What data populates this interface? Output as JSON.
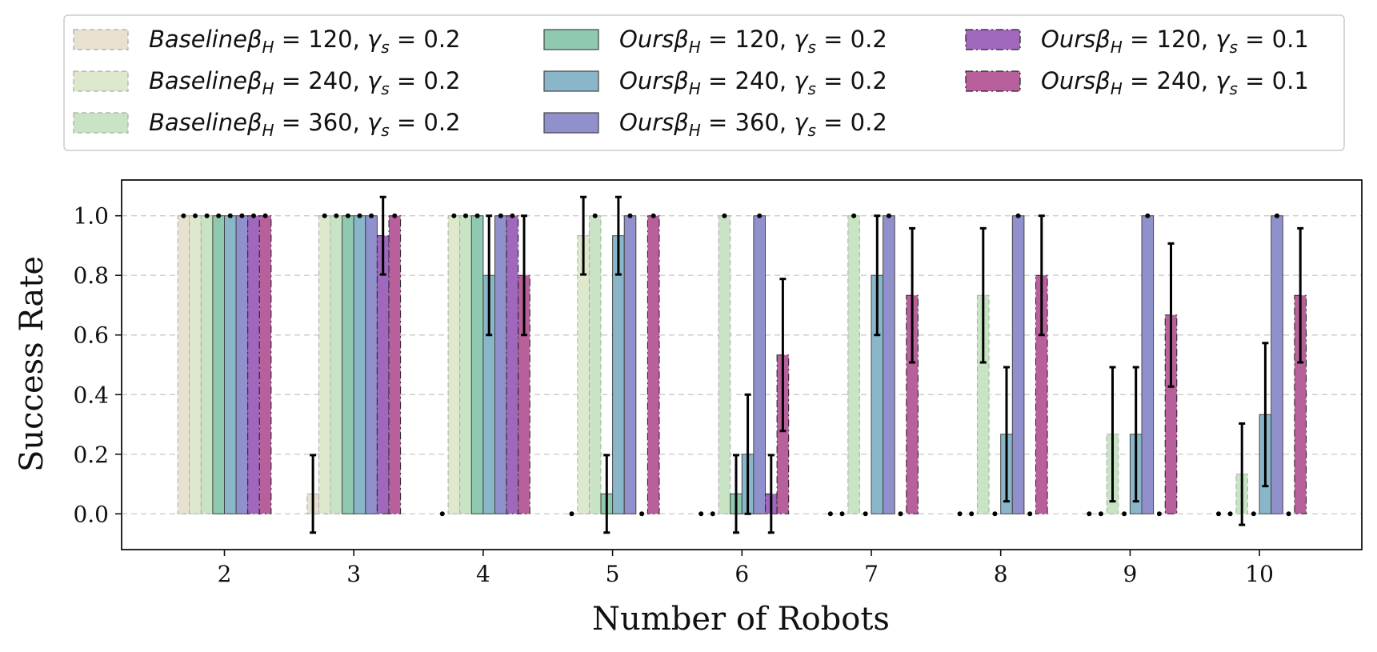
{
  "chart_data": {
    "type": "bar",
    "xlabel": "Number of Robots",
    "ylabel": "Success Rate",
    "ylim": [
      -0.12,
      1.12
    ],
    "yticks": [
      "0.0",
      "0.2",
      "0.4",
      "0.6",
      "0.8",
      "1.0"
    ],
    "grid": "y-dashed",
    "legend_position": "top",
    "categories": [
      "2",
      "3",
      "4",
      "5",
      "6",
      "7",
      "8",
      "9",
      "10"
    ],
    "series": [
      {
        "name": "Baselineβ_H = 120, γ_s = 0.2",
        "prefix": "Baseline",
        "beta": "120",
        "gamma": "0.2",
        "color": "#e8e0d0",
        "style": "dashed",
        "values": [
          1.0,
          0.067,
          0.0,
          0.0,
          0.0,
          0.0,
          0.0,
          0.0,
          0.0
        ],
        "errors": [
          0,
          0.13,
          0,
          0,
          0,
          0,
          0,
          0,
          0
        ]
      },
      {
        "name": "Baselineβ_H = 240, γ_s = 0.2",
        "prefix": "Baseline",
        "beta": "240",
        "gamma": "0.2",
        "color": "#dde8cc",
        "style": "dashed",
        "values": [
          1.0,
          1.0,
          1.0,
          0.933,
          0.0,
          0.0,
          0.0,
          0.0,
          0.0
        ],
        "errors": [
          0,
          0,
          0,
          0.13,
          0,
          0,
          0,
          0,
          0
        ]
      },
      {
        "name": "Baselineβ_H = 360, γ_s = 0.2",
        "prefix": "Baseline",
        "beta": "360",
        "gamma": "0.2",
        "color": "#c9e4c4",
        "style": "dashed",
        "values": [
          1.0,
          1.0,
          1.0,
          1.0,
          1.0,
          1.0,
          0.733,
          0.267,
          0.133
        ],
        "errors": [
          0,
          0,
          0,
          0,
          0,
          0,
          0.225,
          0.225,
          0.17
        ]
      },
      {
        "name": "Oursβ_H = 120, γ_s = 0.2",
        "prefix": "Ours",
        "beta": "120",
        "gamma": "0.2",
        "color": "#8ec9b0",
        "style": "solid",
        "values": [
          1.0,
          1.0,
          1.0,
          0.067,
          0.067,
          0.0,
          0.0,
          0.0,
          0.0
        ],
        "errors": [
          0,
          0,
          0,
          0.13,
          0.13,
          0,
          0,
          0,
          0
        ]
      },
      {
        "name": "Oursβ_H = 240, γ_s = 0.2",
        "prefix": "Ours",
        "beta": "240",
        "gamma": "0.2",
        "color": "#8ab6ca",
        "style": "solid",
        "values": [
          1.0,
          1.0,
          0.8,
          0.933,
          0.2,
          0.8,
          0.267,
          0.267,
          0.333
        ],
        "errors": [
          0,
          0,
          0.2,
          0.13,
          0.2,
          0.2,
          0.225,
          0.225,
          0.24
        ]
      },
      {
        "name": "Oursβ_H = 360, γ_s = 0.2",
        "prefix": "Ours",
        "beta": "360",
        "gamma": "0.2",
        "color": "#9090cc",
        "style": "solid",
        "values": [
          1.0,
          1.0,
          1.0,
          1.0,
          1.0,
          1.0,
          1.0,
          1.0,
          1.0
        ],
        "errors": [
          0,
          0,
          0,
          0,
          0,
          0,
          0,
          0,
          0
        ]
      },
      {
        "name": "Oursβ_H = 120, γ_s = 0.1",
        "prefix": "Ours",
        "beta": "120",
        "gamma": "0.1",
        "color": "#a068bc",
        "style": "dashdot",
        "values": [
          1.0,
          0.933,
          1.0,
          0.0,
          0.067,
          0.0,
          0.0,
          0.0,
          0.0
        ],
        "errors": [
          0,
          0.13,
          0,
          0,
          0.13,
          0,
          0,
          0,
          0
        ]
      },
      {
        "name": "Oursβ_H = 240, γ_s = 0.1",
        "prefix": "Ours",
        "beta": "240",
        "gamma": "0.1",
        "color": "#b8609c",
        "style": "dashdot",
        "values": [
          1.0,
          1.0,
          0.8,
          1.0,
          0.533,
          0.733,
          0.8,
          0.667,
          0.733
        ],
        "errors": [
          0,
          0,
          0.2,
          0,
          0.255,
          0.225,
          0.2,
          0.24,
          0.225
        ]
      }
    ]
  }
}
